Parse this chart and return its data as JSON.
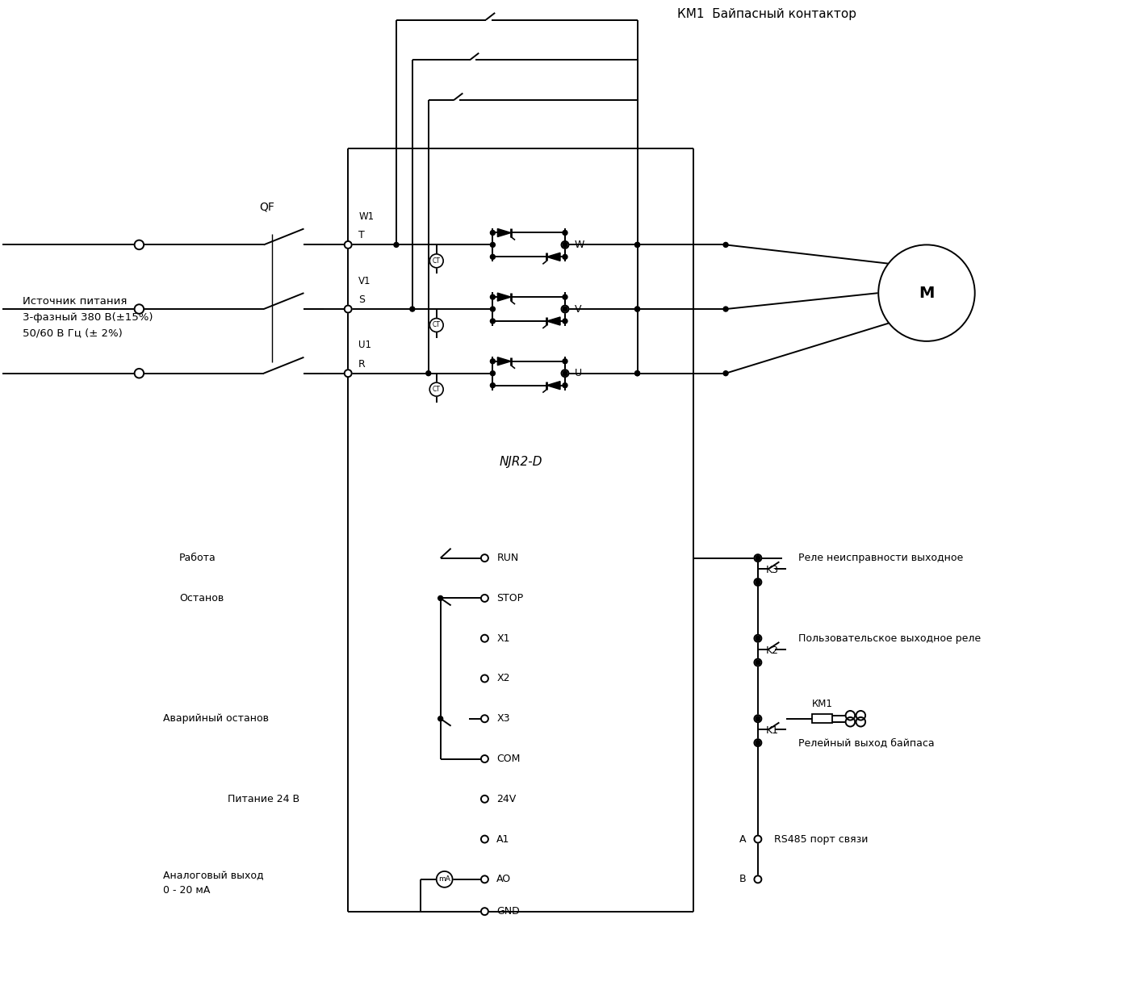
{
  "title": "КМ1  Байпасный контактор",
  "power_label": "Источник питания\n3-фазный 380 В(±15%)\n50/60 В Гц (± 2%)",
  "qf_label": "QF",
  "njr_label": "NJR2-D",
  "motor_label": "М",
  "terminal_T": "T",
  "terminal_S": "S",
  "terminal_R": "R",
  "terminal_W1": "W1",
  "terminal_V1": "V1",
  "terminal_U1": "U1",
  "terminal_W": "W",
  "terminal_V": "V",
  "terminal_U": "U",
  "ctrl_terms": [
    "RUN",
    "STOP",
    "X1",
    "X2",
    "X3",
    "COM",
    "24V",
    "A1",
    "AO",
    "GND"
  ],
  "ctrl_labels": [
    "Работа",
    "Останов",
    "",
    "",
    "Аварийный останов",
    "",
    "Питание 24 В",
    "",
    "Аналоговый выход\n0 - 20 мА",
    ""
  ],
  "out_labels": [
    "Реле неисправности выходное",
    "Пользовательское выходное реле",
    "Релейный выход байпаса"
  ],
  "relay_labels": [
    "K3",
    "K2",
    "K1"
  ],
  "km1_label": "КМ1",
  "rs485_label": "RS485 порт связи",
  "ab_labels": [
    "A",
    "B"
  ],
  "bg": "#ffffff",
  "lc": "#000000"
}
